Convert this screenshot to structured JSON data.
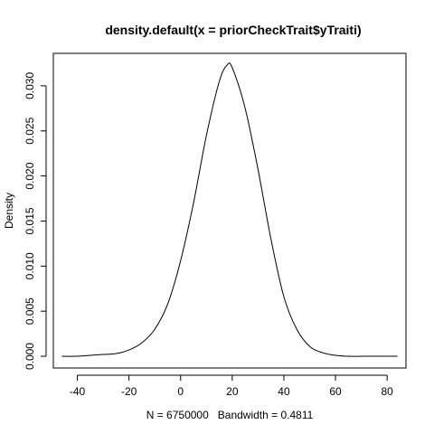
{
  "chart_data": {
    "type": "line",
    "title": "density.default(x = priorCheckTrait$yTraiti)",
    "xlabel": "N = 6750000   Bandwidth = 0.4811",
    "ylabel": "Density",
    "xlim": [
      -49.3,
      87.3
    ],
    "ylim": [
      -0.0013,
      0.0336
    ],
    "xticks": [
      -40,
      -20,
      0,
      20,
      40,
      60,
      80
    ],
    "yticks": [
      0.0,
      0.005,
      0.01,
      0.015,
      0.02,
      0.025,
      0.03
    ],
    "ytick_labels": [
      "0.000",
      "0.005",
      "0.010",
      "0.015",
      "0.020",
      "0.025",
      "0.030"
    ],
    "grid": false,
    "series": [
      {
        "x": [
          -46,
          -40,
          -35,
          -30,
          -25,
          -20,
          -15,
          -10,
          -5,
          0,
          5,
          10,
          15,
          18,
          20,
          25,
          30,
          35,
          40,
          45,
          50,
          55,
          60,
          65,
          70,
          75,
          80,
          84
        ],
        "values": [
          0.0,
          0.0,
          0.0001,
          0.0002,
          0.0003,
          0.0007,
          0.0015,
          0.003,
          0.0058,
          0.0106,
          0.017,
          0.0245,
          0.0305,
          0.0323,
          0.032,
          0.0275,
          0.0207,
          0.013,
          0.0066,
          0.003,
          0.0011,
          0.0004,
          0.0001,
          0.0,
          0.0,
          0.0,
          0.0,
          0.0
        ]
      }
    ]
  }
}
